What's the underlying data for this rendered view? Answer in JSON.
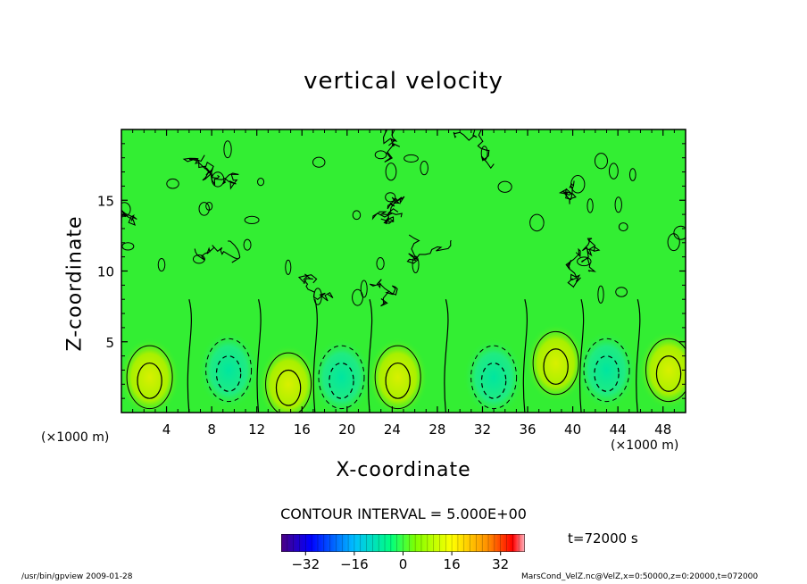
{
  "window": {
    "footer_left": "/usr/bin/gpview  2009-01-28",
    "footer_right": "MarsCond_VelZ.nc@VelZ,x=0:50000,z=0:20000,t=072000"
  },
  "colors": {
    "background": "#00ff00",
    "field": "#33ee33",
    "contour": "#000000"
  },
  "chart_data": {
    "type": "heatmap",
    "title": "vertical velocity",
    "xlabel": "X-coordinate",
    "ylabel": "Z-coordinate",
    "x_unit": "(×1000 m)",
    "y_unit": "(×1000 m)",
    "xlim": [
      0,
      50
    ],
    "ylim": [
      0,
      20
    ],
    "x_ticks": [
      4,
      8,
      12,
      16,
      20,
      24,
      28,
      32,
      36,
      40,
      44,
      48
    ],
    "x_tick_labels": [
      "4",
      "8",
      "12",
      "16",
      "20",
      "24",
      "28",
      "32",
      "36",
      "40",
      "44",
      "48"
    ],
    "y_ticks": [
      5,
      10,
      15
    ],
    "y_tick_labels": [
      "5",
      "10",
      "15"
    ],
    "contour_interval_text": "CONTOUR INTERVAL = 5.000E+00",
    "contour_interval": 5.0,
    "time_text": "t=72000 s",
    "colorbar": {
      "range": [
        -40,
        40
      ],
      "tick_values": [
        -32,
        -16,
        0,
        16,
        32
      ],
      "tick_labels": [
        "−32",
        "−16",
        "0",
        "16",
        "32"
      ]
    },
    "features": [
      {
        "x": 2.5,
        "z": 2.5,
        "sign": "positive",
        "label": "updraft"
      },
      {
        "x": 9.5,
        "z": 3.0,
        "sign": "negative",
        "label": "downdraft"
      },
      {
        "x": 14.8,
        "z": 2.0,
        "sign": "positive",
        "label": "updraft"
      },
      {
        "x": 19.5,
        "z": 2.5,
        "sign": "negative",
        "label": "downdraft"
      },
      {
        "x": 24.5,
        "z": 2.5,
        "sign": "positive",
        "label": "updraft"
      },
      {
        "x": 33.0,
        "z": 2.5,
        "sign": "negative",
        "label": "downdraft"
      },
      {
        "x": 38.5,
        "z": 3.5,
        "sign": "positive",
        "label": "updraft"
      },
      {
        "x": 43.0,
        "z": 3.0,
        "sign": "negative",
        "label": "downdraft"
      },
      {
        "x": 48.5,
        "z": 3.0,
        "sign": "positive",
        "label": "updraft"
      }
    ]
  }
}
